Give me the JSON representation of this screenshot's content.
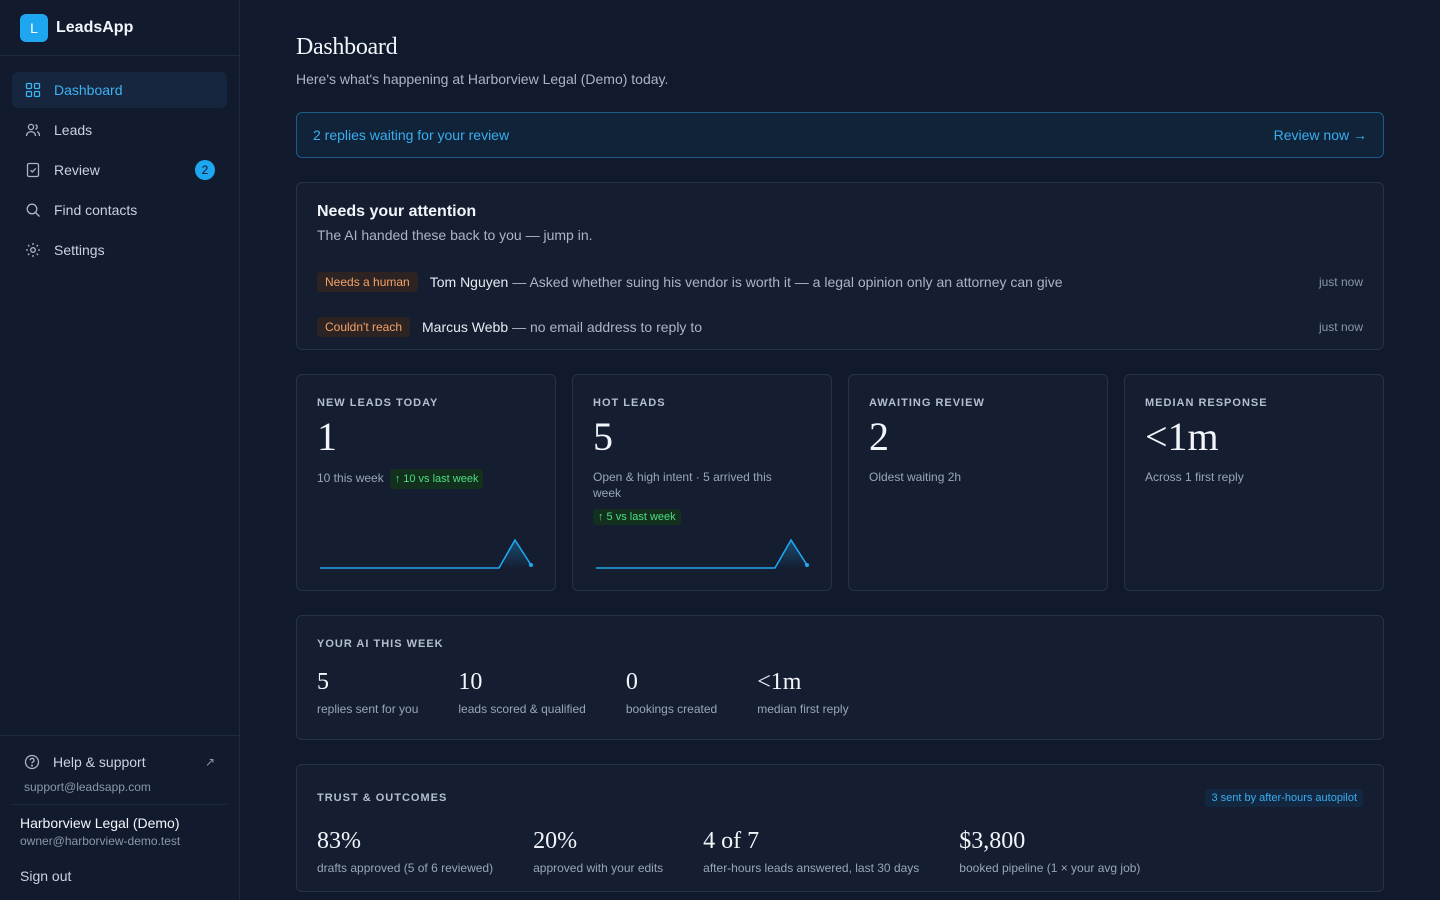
{
  "brand": {
    "logo_letter": "L",
    "name": "LeadsApp"
  },
  "nav": {
    "items": [
      {
        "label": "Dashboard",
        "icon": "grid-icon",
        "active": true
      },
      {
        "label": "Leads",
        "icon": "users-icon"
      },
      {
        "label": "Review",
        "icon": "check-square-icon",
        "badge": "2"
      },
      {
        "label": "Find contacts",
        "icon": "search-icon"
      },
      {
        "label": "Settings",
        "icon": "gear-icon"
      }
    ]
  },
  "help": {
    "label": "Help & support",
    "arrow": "↗",
    "email": "support@leadsapp.com"
  },
  "account": {
    "name": "Harborview Legal (Demo)",
    "email": "owner@harborview-demo.test",
    "signout": "Sign out"
  },
  "header": {
    "title": "Dashboard",
    "subtitle": "Here's what's happening at Harborview Legal (Demo) today."
  },
  "banner": {
    "text": "2 replies waiting for your review",
    "action": "Review now →"
  },
  "attention": {
    "title": "Needs your attention",
    "subtitle": "The AI handed these back to you — jump in.",
    "items": [
      {
        "tag": "Needs a human",
        "name": "Tom Nguyen",
        "desc": "— Asked whether suing his vendor is worth it — a legal opinion only an attorney can give",
        "time": "just now"
      },
      {
        "tag": "Couldn't reach",
        "name": "Marcus Webb",
        "desc": "— no email address to reply to",
        "time": "just now"
      }
    ]
  },
  "stats": [
    {
      "label": "NEW LEADS TODAY",
      "value": "1",
      "sub": "10 this week",
      "delta": "↑ 10 vs last week"
    },
    {
      "label": "HOT LEADS",
      "value": "5",
      "sub": "Open & high intent · 5 arrived this week",
      "delta": "↑ 5 vs last week"
    },
    {
      "label": "AWAITING REVIEW",
      "value": "2",
      "sub": "Oldest waiting 2h"
    },
    {
      "label": "MEDIAN RESPONSE",
      "value": "<1m",
      "sub": "Across 1 first reply"
    }
  ],
  "ai_week": {
    "label": "YOUR AI THIS WEEK",
    "metrics": [
      {
        "value": "5",
        "label": "replies sent for you"
      },
      {
        "value": "10",
        "label": "leads scored & qualified"
      },
      {
        "value": "0",
        "label": "bookings created"
      },
      {
        "value": "<1m",
        "label": "median first reply"
      }
    ]
  },
  "trust": {
    "label": "TRUST & OUTCOMES",
    "link": "3 sent by after-hours autopilot",
    "metrics": [
      {
        "value": "83%",
        "label": "drafts approved (5 of 6 reviewed)"
      },
      {
        "value": "20%",
        "label": "approved with your edits"
      },
      {
        "value": "4 of 7",
        "label": "after-hours leads answered, last 30 days"
      },
      {
        "value": "$3,800",
        "label": "booked pipeline (1 × your avg job)"
      }
    ]
  },
  "colors": {
    "accent": "#1ea7f0",
    "positive": "#4ade80",
    "warning": "#f0a36b",
    "background": "#111a2c"
  }
}
